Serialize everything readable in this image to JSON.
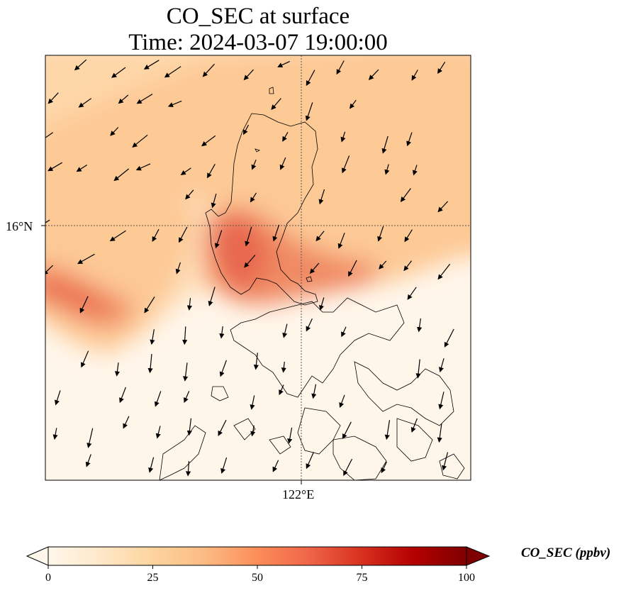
{
  "title": {
    "line1": "CO_SEC at surface",
    "line2": "Time: 2024-03-07 19:00:00"
  },
  "axes": {
    "lat_label": "16°N",
    "lon_label": "122°E"
  },
  "colorbar": {
    "label": "CO_SEC (ppbv)",
    "min": 0,
    "max": 100,
    "ticks": [
      "0",
      "25",
      "50",
      "75",
      "100"
    ],
    "colormap": "OrRd",
    "colors": [
      "#fff7ec",
      "#fee8c8",
      "#fdd49e",
      "#fdbb84",
      "#fc8d59",
      "#ef6548",
      "#d7301f",
      "#b30000",
      "#7f0000"
    ],
    "extend": "both"
  },
  "map": {
    "features": [
      "concentration field",
      "wind vectors",
      "coastlines",
      "gridlines"
    ],
    "gridline_style": "dotted"
  }
}
